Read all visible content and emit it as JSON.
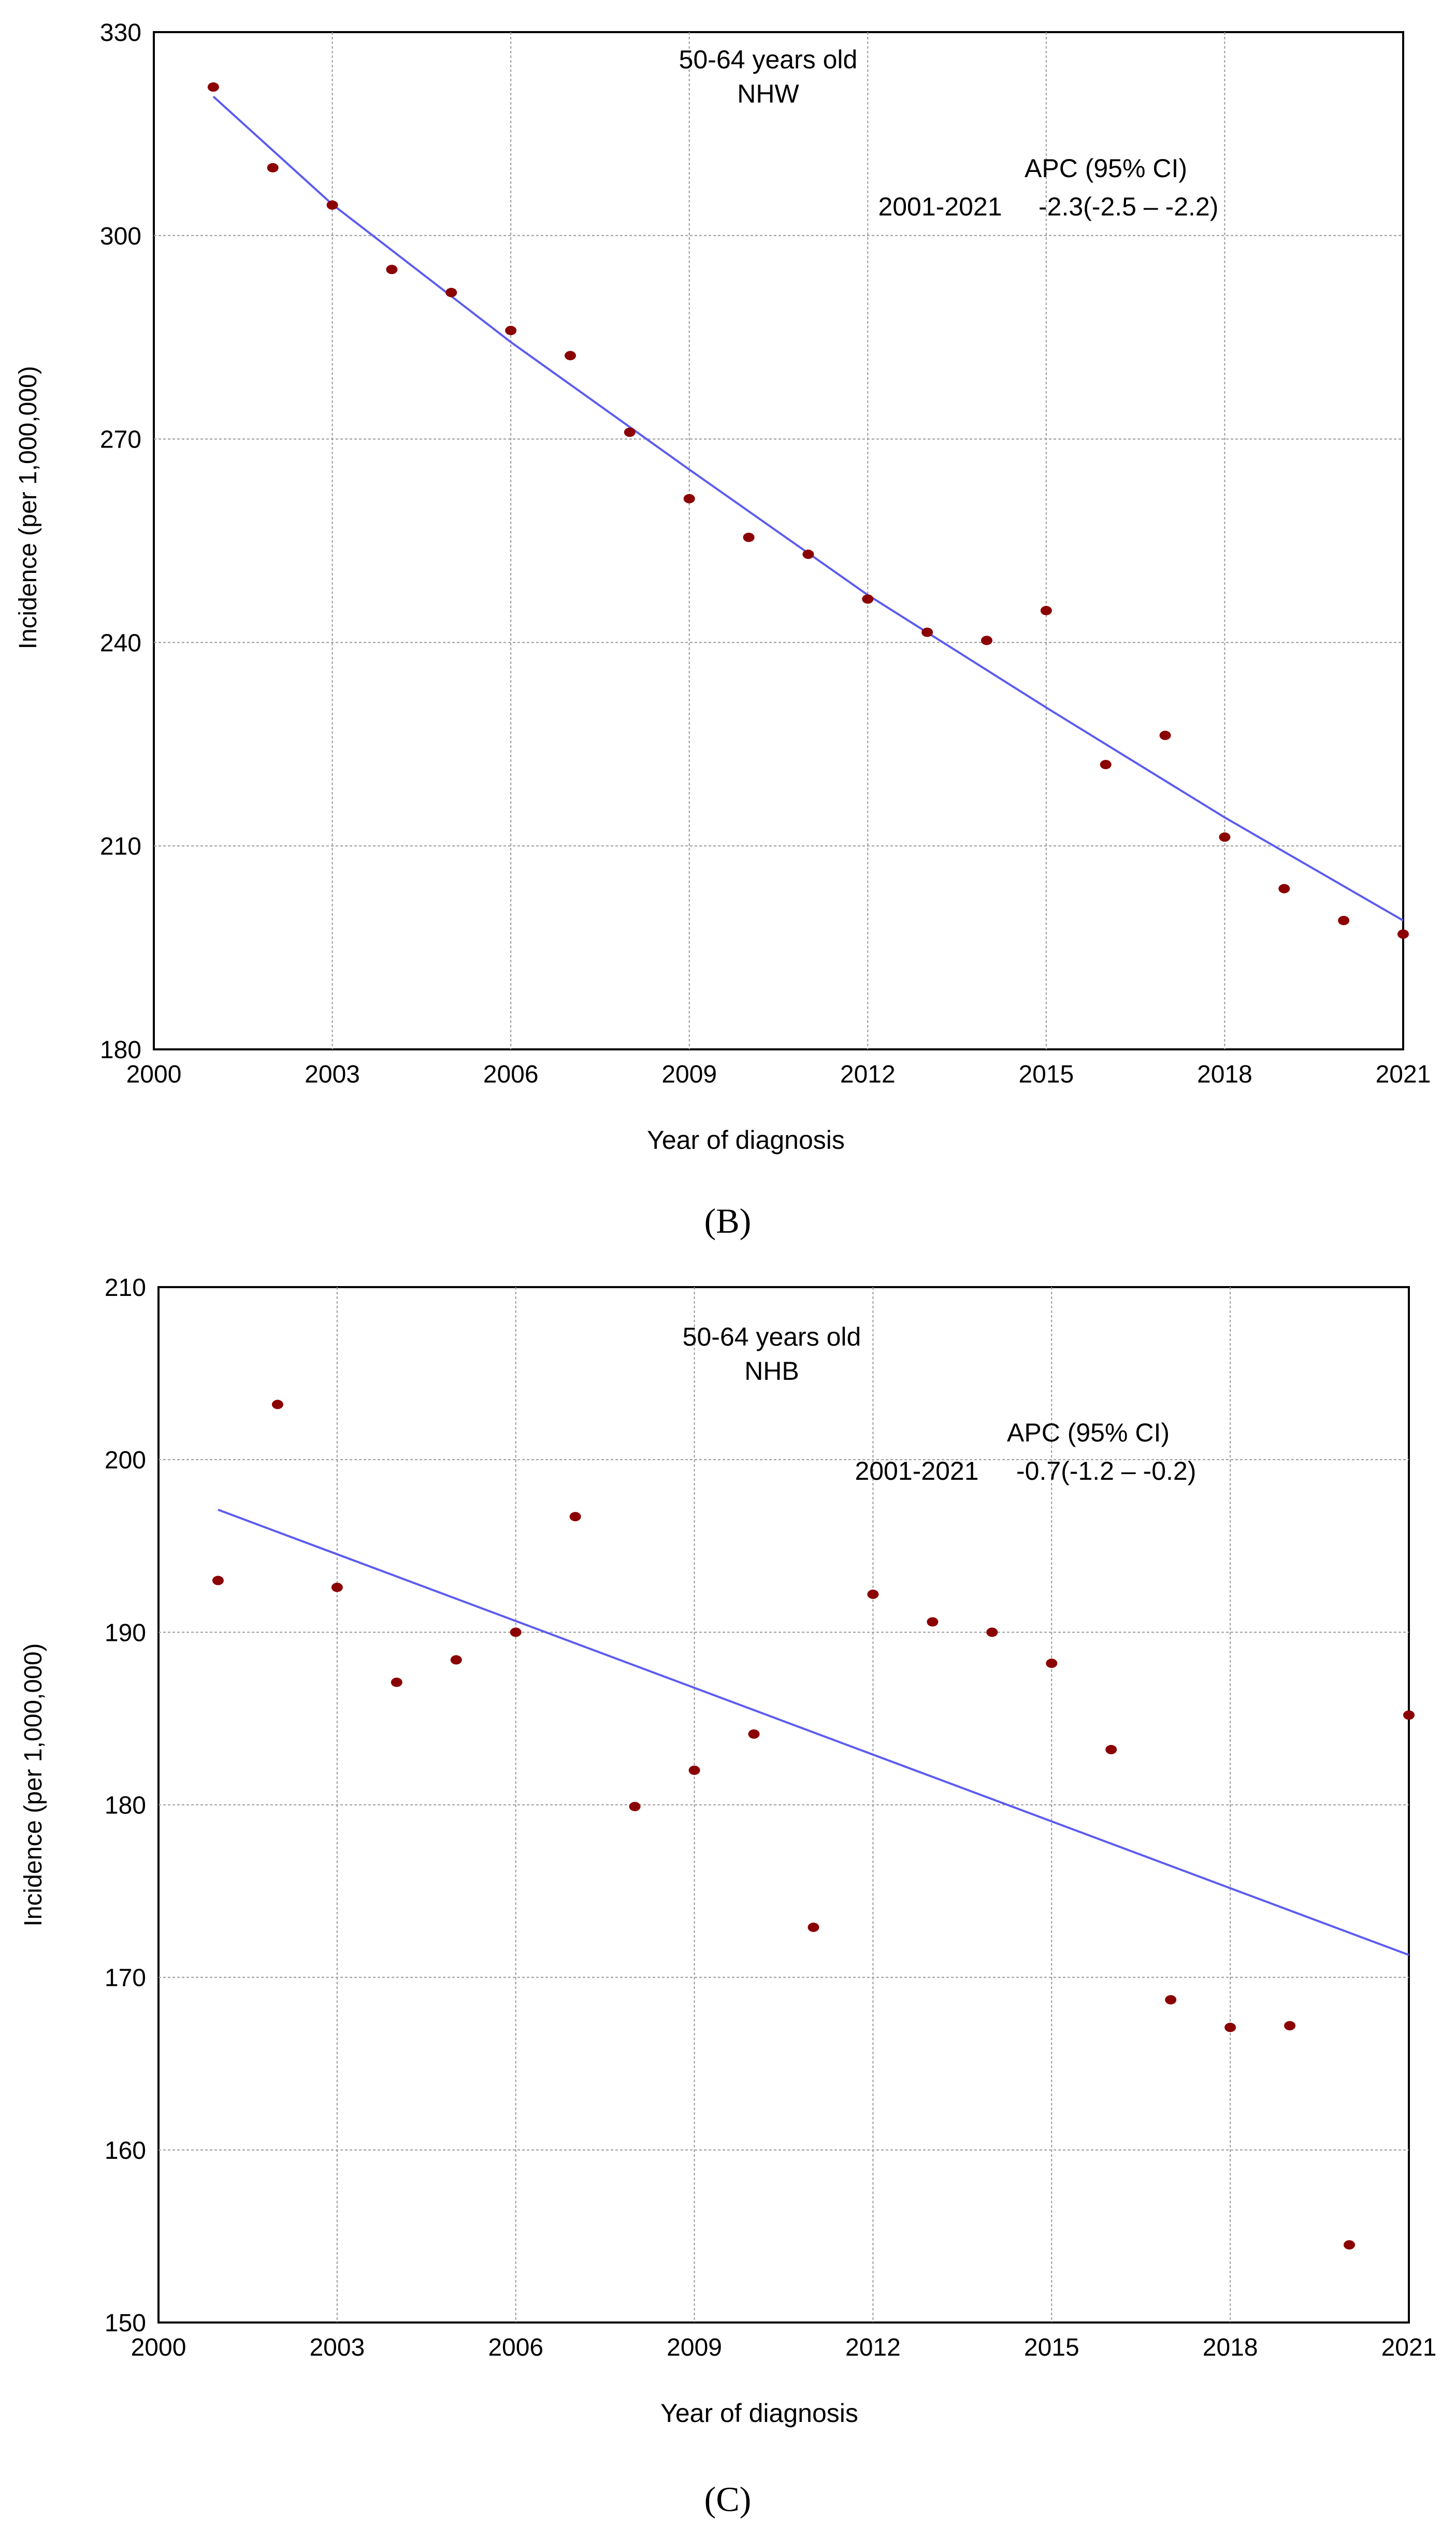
{
  "figure": {
    "panel_labels": [
      "(B)",
      "(C)"
    ]
  },
  "colors": {
    "point": "#8b0000",
    "line": "#5b5bf0",
    "grid": "#999999",
    "axis": "#000000"
  },
  "chart_data": [
    {
      "type": "scatter",
      "panel": "(B)",
      "title_lines": [
        "50-64 years old",
        "NHW"
      ],
      "annotation": {
        "header": "APC (95% CI)",
        "period": "2001-2021",
        "value": "-2.3(-2.5 – -2.2)"
      },
      "xlabel": "Year of diagnosis",
      "ylabel": "Incidence (per 1,000,000)",
      "xlim": [
        2000,
        2021
      ],
      "ylim": [
        180,
        330
      ],
      "xticks": [
        "2000",
        "2003",
        "2006",
        "2009",
        "2012",
        "2015",
        "2018",
        "2021"
      ],
      "yticks": [
        "180",
        "210",
        "240",
        "270",
        "300",
        "330"
      ],
      "grid": true,
      "x": [
        2001,
        2002,
        2003,
        2004,
        2005,
        2006,
        2007,
        2008,
        2009,
        2010,
        2011,
        2012,
        2013,
        2014,
        2015,
        2016,
        2017,
        2018,
        2019,
        2020,
        2021
      ],
      "y": [
        321.9,
        310.0,
        304.5,
        295.0,
        291.6,
        286.0,
        282.3,
        271.0,
        261.2,
        255.5,
        253.0,
        246.4,
        241.5,
        240.3,
        244.7,
        222.0,
        226.3,
        211.3,
        203.7,
        199.0,
        197.0
      ],
      "fit": {
        "name": "APC trend",
        "x": [
          2001,
          2003,
          2006,
          2009,
          2012,
          2015,
          2018,
          2021
        ],
        "y": [
          320.5,
          304.6,
          284.3,
          265.5,
          247.0,
          230.4,
          214.2,
          199.0
        ]
      }
    },
    {
      "type": "scatter",
      "panel": "(C)",
      "title_lines": [
        "50-64 years old",
        "NHB"
      ],
      "annotation": {
        "header": "APC (95% CI)",
        "period": "2001-2021",
        "value": "-0.7(-1.2 – -0.2)"
      },
      "xlabel": "Year of diagnosis",
      "ylabel": "Incidence (per 1,000,000)",
      "xlim": [
        2000,
        2021
      ],
      "ylim": [
        150,
        210
      ],
      "xticks": [
        "2000",
        "2003",
        "2006",
        "2009",
        "2012",
        "2015",
        "2018",
        "2021"
      ],
      "yticks": [
        "150",
        "160",
        "170",
        "180",
        "190",
        "200",
        "210"
      ],
      "grid": true,
      "x": [
        2001,
        2002,
        2003,
        2004,
        2005,
        2006,
        2007,
        2008,
        2009,
        2010,
        2011,
        2012,
        2013,
        2014,
        2015,
        2016,
        2017,
        2018,
        2019,
        2020,
        2021
      ],
      "y": [
        193.0,
        203.2,
        192.6,
        187.1,
        188.4,
        190.0,
        196.7,
        179.9,
        182.0,
        184.1,
        172.9,
        192.2,
        190.6,
        190.0,
        188.2,
        183.2,
        168.7,
        167.1,
        167.2,
        154.5,
        185.2
      ],
      "fit": {
        "name": "APC trend",
        "x": [
          2001,
          2021
        ],
        "y": [
          197.1,
          171.3
        ]
      }
    }
  ]
}
